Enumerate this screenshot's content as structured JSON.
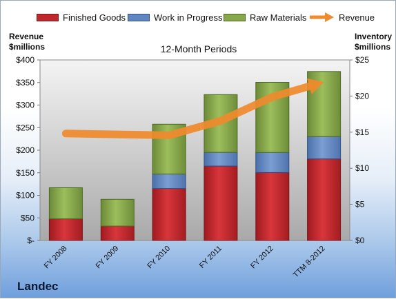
{
  "chart_data": {
    "type": "bar",
    "title": "12-Month Periods",
    "categories": [
      "FY 2008",
      "FY 2009",
      "FY 2010",
      "FY 2011",
      "FY 2012",
      "TTM 8-2012"
    ],
    "series": [
      {
        "name": "Finished Goods",
        "axis": "right",
        "values": [
          3.0,
          2.0,
          7.2,
          10.3,
          9.4,
          11.3
        ]
      },
      {
        "name": "Work in Progress",
        "axis": "right",
        "values": [
          0,
          0,
          2.0,
          1.9,
          2.8,
          3.1
        ]
      },
      {
        "name": "Raw Materials",
        "axis": "right",
        "values": [
          4.3,
          3.7,
          6.9,
          8.0,
          9.7,
          9.0
        ]
      },
      {
        "name": "Revenue",
        "axis": "left",
        "type": "line",
        "values": [
          237,
          235,
          233,
          265,
          318,
          351
        ]
      }
    ],
    "ylabel": "Revenue $millions",
    "ylabel_right": "Inventory $millions",
    "ylim": [
      0,
      400
    ],
    "ylim_right": [
      0,
      25
    ],
    "left_ticks": [
      "$-",
      "$50",
      "$100",
      "$150",
      "$200",
      "$250",
      "$300",
      "$350",
      "$400"
    ],
    "right_ticks": [
      "$0",
      "$5",
      "$10",
      "$15",
      "$20",
      "$25"
    ],
    "stacked": true,
    "grid": false,
    "legend_position": "top"
  },
  "legend": [
    {
      "label": "Finished Goods",
      "kind": "box",
      "color": "#c0282d"
    },
    {
      "label": "Work in Progress",
      "kind": "box",
      "color": "#5f86c0"
    },
    {
      "label": "Raw Materials",
      "kind": "box",
      "color": "#86a84a"
    },
    {
      "label": "Revenue",
      "kind": "arrow",
      "color": "#f08a2c"
    }
  ],
  "axis_titles": {
    "left_line1": "Revenue",
    "left_line2": "$millions",
    "right_line1": "Inventory",
    "right_line2": "$millions"
  },
  "company": "Landec",
  "colors": {
    "finished_goods": "#c0282d",
    "work_in_progress": "#5f86c0",
    "raw_materials": "#86a84a",
    "revenue": "#f08a2c"
  }
}
